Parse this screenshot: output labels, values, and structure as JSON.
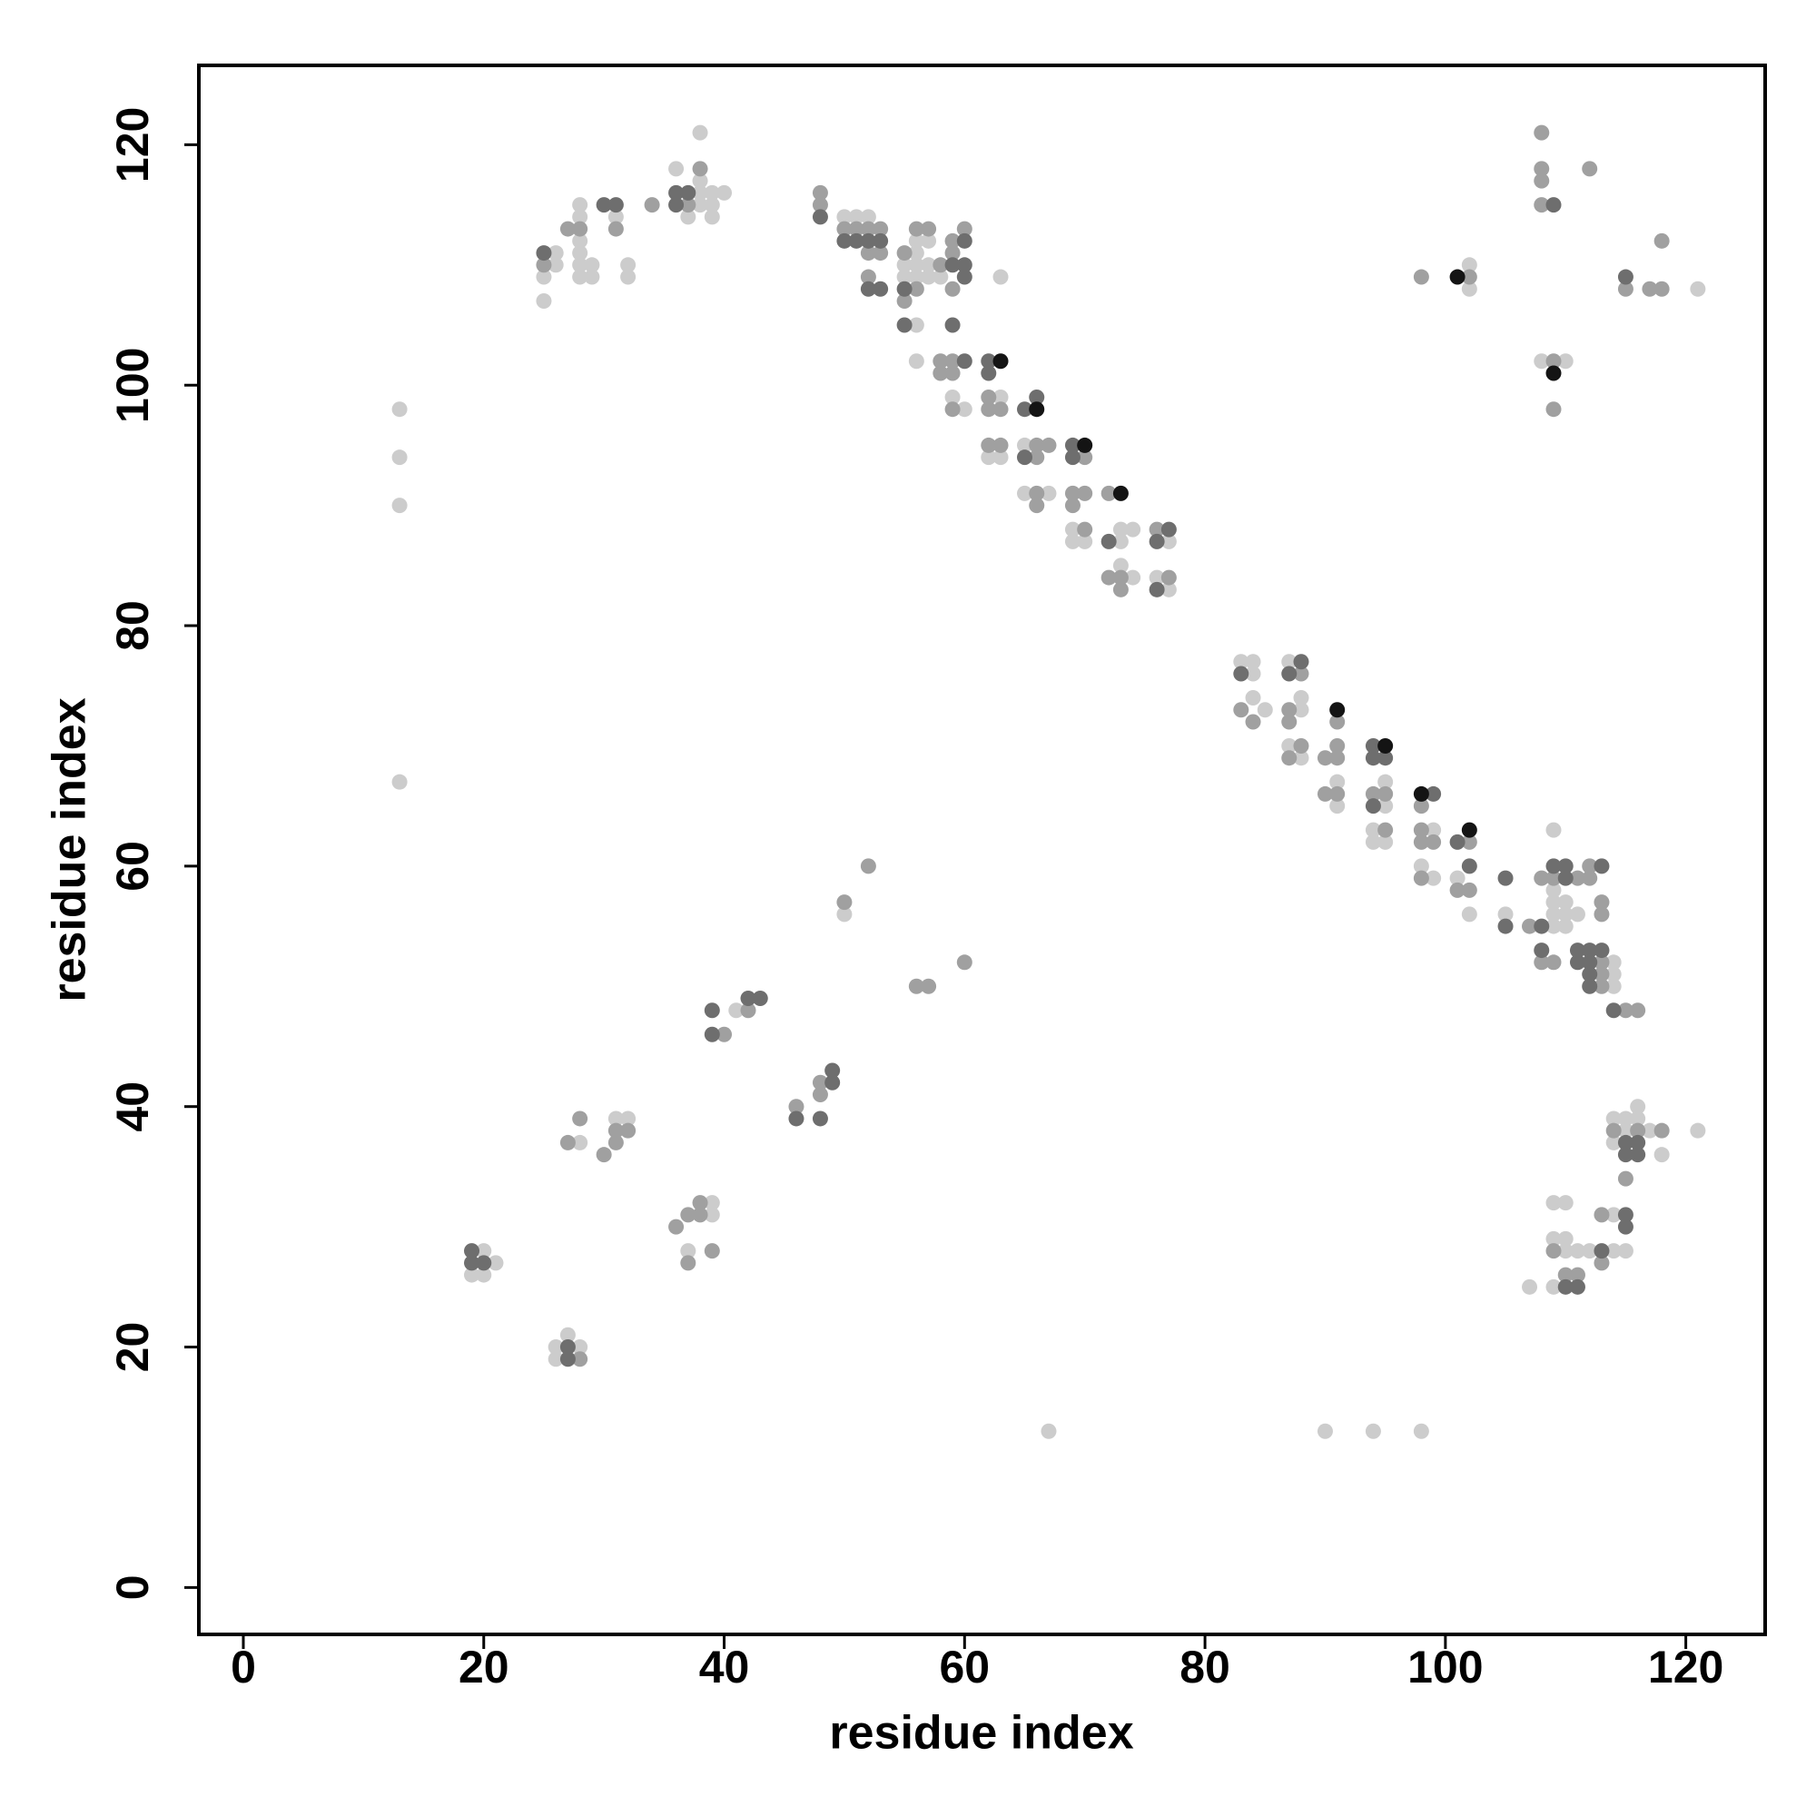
{
  "chart_data": {
    "type": "scatter",
    "xlabel": "residue index",
    "ylabel": "residue index",
    "xlim": [
      -3.7,
      126.6
    ],
    "ylim": [
      -3.9,
      126.6
    ],
    "xticks": [
      0,
      20,
      40,
      60,
      80,
      100,
      120
    ],
    "yticks": [
      0,
      20,
      40,
      60,
      80,
      100,
      120
    ],
    "series": [
      {
        "color": "#cccccc",
        "x": [
          13,
          13,
          13,
          13,
          25,
          25,
          26,
          26,
          28,
          28,
          28,
          28,
          28,
          28,
          29,
          29,
          31,
          32,
          32,
          36,
          37,
          38,
          38,
          38,
          38,
          39,
          39,
          39,
          40,
          50,
          51,
          52,
          55,
          55,
          56,
          56,
          56,
          56,
          56,
          56,
          57,
          57,
          57,
          58,
          59,
          60,
          63,
          63,
          62,
          63,
          65,
          65,
          67,
          69,
          69,
          70,
          73,
          73,
          74,
          73,
          74,
          77,
          76,
          77,
          83,
          84,
          84,
          84,
          85,
          87,
          88,
          88,
          87,
          88,
          91,
          91,
          95,
          95,
          94,
          94,
          95,
          99,
          98,
          99,
          101,
          102,
          105,
          109,
          109,
          109,
          109,
          109,
          110,
          110,
          110,
          111,
          114,
          114,
          114,
          102,
          102,
          108,
          110,
          121,
          50,
          41,
          19,
          20,
          20,
          21,
          26,
          26,
          27,
          28,
          28,
          31,
          32,
          37,
          39,
          39,
          107,
          109,
          109,
          109,
          110,
          110,
          110,
          111,
          112,
          114,
          114,
          114,
          114,
          115,
          115,
          115,
          116,
          116,
          117,
          118,
          121,
          67,
          90,
          94,
          98
        ],
        "values": [
          98,
          94,
          90,
          67,
          109,
          107,
          111,
          110,
          115,
          114,
          112,
          111,
          110,
          109,
          110,
          109,
          114,
          110,
          109,
          118,
          114,
          121,
          117,
          116,
          115,
          116,
          115,
          114,
          116,
          114,
          114,
          114,
          110,
          109,
          112,
          111,
          110,
          109,
          105,
          102,
          112,
          110,
          109,
          109,
          99,
          98,
          109,
          99,
          94,
          94,
          95,
          91,
          91,
          88,
          87,
          87,
          88,
          87,
          88,
          85,
          84,
          87,
          84,
          83,
          77,
          77,
          76,
          74,
          73,
          77,
          74,
          73,
          70,
          69,
          67,
          65,
          67,
          65,
          63,
          62,
          62,
          63,
          60,
          59,
          59,
          56,
          56,
          63,
          58,
          57,
          56,
          55,
          57,
          56,
          55,
          56,
          52,
          51,
          50,
          110,
          108,
          102,
          102,
          108,
          56,
          48,
          26,
          28,
          26,
          27,
          20,
          19,
          21,
          20,
          37,
          39,
          39,
          28,
          32,
          31,
          25,
          32,
          29,
          25,
          32,
          29,
          28,
          28,
          28,
          39,
          37,
          31,
          28,
          39,
          38,
          28,
          40,
          39,
          38,
          36,
          38,
          13,
          13,
          13,
          13
        ]
      },
      {
        "color": "#a0a0a0",
        "x": [
          25,
          27,
          28,
          31,
          34,
          37,
          38,
          48,
          48,
          50,
          51,
          52,
          52,
          52,
          53,
          53,
          55,
          55,
          56,
          56,
          57,
          58,
          58,
          58,
          59,
          59,
          59,
          59,
          59,
          59,
          60,
          62,
          62,
          63,
          62,
          63,
          66,
          66,
          67,
          66,
          66,
          69,
          69,
          70,
          70,
          70,
          72,
          72,
          73,
          73,
          76,
          77,
          83,
          84,
          88,
          87,
          87,
          87,
          88,
          90,
          91,
          91,
          91,
          90,
          91,
          94,
          95,
          95,
          98,
          98,
          98,
          99,
          98,
          101,
          102,
          102,
          107,
          108,
          108,
          109,
          109,
          111,
          112,
          112,
          113,
          113,
          113,
          113,
          113,
          115,
          116,
          98,
          102,
          108,
          108,
          108,
          108,
          112,
          109,
          109,
          115,
          117,
          118,
          118,
          52,
          50,
          56,
          57,
          60,
          40,
          42,
          46,
          48,
          48,
          28,
          27,
          28,
          30,
          31,
          31,
          32,
          36,
          37,
          37,
          38,
          38,
          39,
          109,
          110,
          111,
          113,
          113,
          114,
          115,
          116,
          118
        ],
        "values": [
          110,
          113,
          113,
          113,
          115,
          115,
          118,
          116,
          115,
          113,
          113,
          113,
          111,
          109,
          113,
          111,
          111,
          107,
          113,
          108,
          113,
          110,
          102,
          101,
          112,
          111,
          108,
          102,
          101,
          98,
          113,
          99,
          98,
          98,
          95,
          95,
          95,
          94,
          95,
          91,
          90,
          91,
          90,
          94,
          91,
          88,
          91,
          84,
          84,
          83,
          88,
          84,
          73,
          72,
          76,
          73,
          72,
          69,
          70,
          69,
          72,
          70,
          69,
          66,
          66,
          66,
          66,
          63,
          65,
          63,
          62,
          62,
          59,
          58,
          62,
          58,
          55,
          59,
          52,
          59,
          52,
          59,
          60,
          59,
          57,
          56,
          52,
          51,
          50,
          48,
          48,
          109,
          109,
          121,
          118,
          117,
          115,
          118,
          102,
          98,
          108,
          108,
          112,
          108,
          60,
          57,
          50,
          50,
          52,
          46,
          48,
          40,
          42,
          41,
          19,
          37,
          39,
          36,
          38,
          37,
          38,
          30,
          31,
          27,
          32,
          31,
          28,
          28,
          26,
          26,
          31,
          27,
          38,
          34,
          38,
          38
        ]
      },
      {
        "color": "#6e6e6e",
        "x": [
          25,
          30,
          31,
          36,
          36,
          37,
          48,
          50,
          51,
          52,
          52,
          53,
          53,
          55,
          55,
          59,
          59,
          60,
          60,
          60,
          60,
          62,
          62,
          65,
          66,
          65,
          69,
          69,
          72,
          76,
          77,
          76,
          83,
          87,
          88,
          94,
          94,
          95,
          94,
          99,
          101,
          102,
          105,
          105,
          108,
          108,
          109,
          110,
          110,
          111,
          111,
          112,
          112,
          112,
          112,
          113,
          113,
          114,
          109,
          115,
          39,
          39,
          42,
          43,
          46,
          48,
          49,
          49,
          19,
          19,
          20,
          27,
          27,
          110,
          111,
          113,
          115,
          115,
          115,
          115,
          116,
          116
        ],
        "values": [
          111,
          115,
          115,
          116,
          115,
          116,
          114,
          112,
          112,
          112,
          108,
          112,
          108,
          108,
          105,
          110,
          105,
          112,
          110,
          109,
          102,
          102,
          101,
          98,
          99,
          94,
          95,
          94,
          87,
          87,
          88,
          83,
          76,
          76,
          77,
          70,
          69,
          69,
          65,
          66,
          62,
          60,
          59,
          55,
          55,
          53,
          60,
          60,
          59,
          53,
          52,
          53,
          52,
          51,
          50,
          60,
          53,
          48,
          115,
          109,
          48,
          46,
          49,
          49,
          39,
          39,
          43,
          42,
          28,
          27,
          27,
          20,
          19,
          25,
          25,
          28,
          37,
          36,
          31,
          30,
          37,
          36
        ]
      },
      {
        "color": "#141414",
        "x": [
          66,
          70,
          73,
          91,
          95,
          98,
          102,
          101,
          109,
          63
        ],
        "values": [
          98,
          95,
          91,
          73,
          70,
          66,
          63,
          109,
          101,
          102
        ]
      }
    ]
  }
}
